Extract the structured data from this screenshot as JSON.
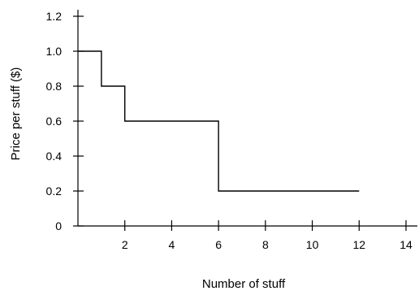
{
  "chart_data": {
    "type": "line",
    "step": true,
    "title": "",
    "xlabel": "Number of stuff",
    "ylabel": "Price per stuff ($)",
    "xlim": [
      0,
      14
    ],
    "ylim": [
      0,
      1.2
    ],
    "x_ticks": [
      2,
      4,
      6,
      8,
      10,
      12,
      14
    ],
    "y_ticks": [
      "0",
      "0.2",
      "0.4",
      "0.6",
      "0.8",
      "1.0",
      "1.2"
    ],
    "grid": false,
    "series": [
      {
        "color": "#000000",
        "points": [
          [
            0,
            1.0
          ],
          [
            1,
            1.0
          ],
          [
            1,
            0.8
          ],
          [
            2,
            0.8
          ],
          [
            2,
            0.6
          ],
          [
            6,
            0.6
          ],
          [
            6,
            0.2
          ],
          [
            12,
            0.2
          ]
        ]
      }
    ]
  }
}
